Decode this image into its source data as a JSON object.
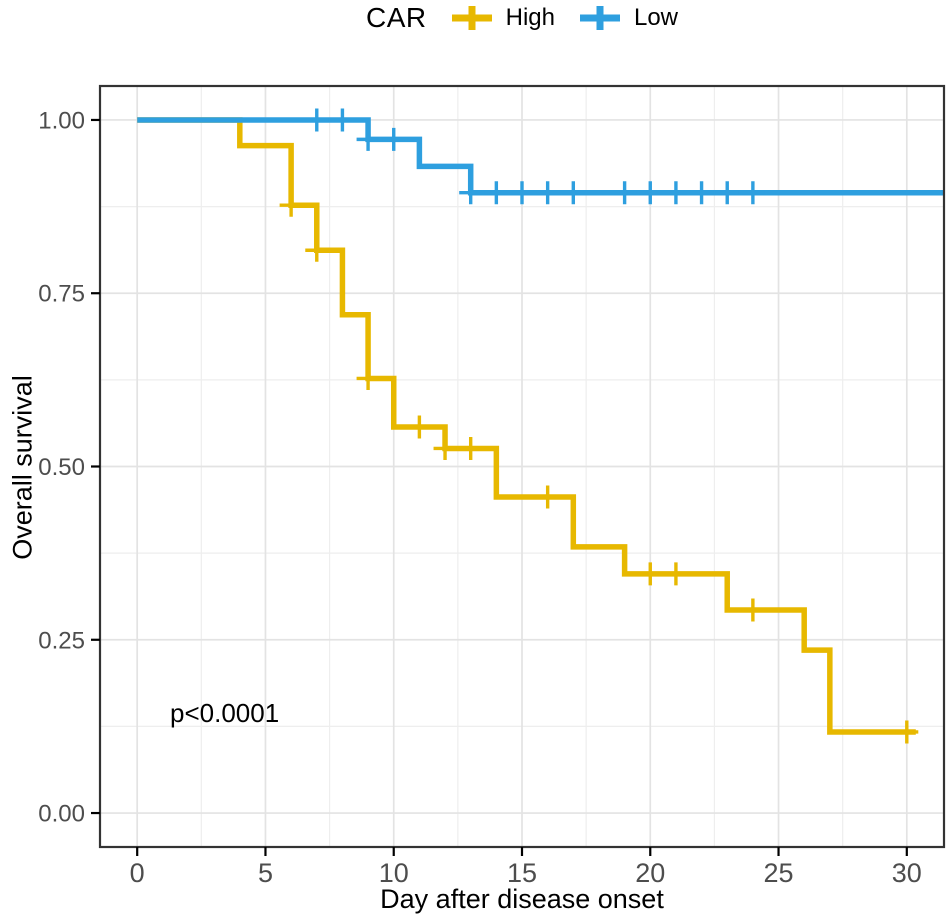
{
  "figure": {
    "kind": "kaplan-meier-survival-plot"
  },
  "legend": {
    "title": "CAR"
  },
  "chart_data": {
    "type": "line",
    "subtype": "kaplan-meier-step",
    "legend_title": "CAR",
    "xlabel": "Day after disease onset",
    "ylabel": "Overall survival",
    "p_value": "p<0.0001",
    "x_ticks": [
      0,
      5,
      10,
      15,
      20,
      25,
      30
    ],
    "x_minor_ticks": [
      2.5,
      7.5,
      12.5,
      17.5,
      22.5,
      27.5
    ],
    "y_ticks": [
      0,
      0.25,
      0.5,
      0.75,
      1.0
    ],
    "y_tick_labels": [
      "0.00",
      "0.25",
      "0.50",
      "0.75",
      "1.00"
    ],
    "y_minor_ticks": [
      0.125,
      0.375,
      0.625,
      0.875
    ],
    "x_range": [
      -1.45,
      31.45
    ],
    "y_range": [
      -0.049,
      1.049
    ],
    "grid": true,
    "legend_position": "top",
    "colors": {
      "grid_major": "#e3e3e3",
      "grid_minor": "#eeeeee",
      "panel_border": "#333333",
      "tick_label": "#4d4d4d",
      "axis_title": "#000000"
    },
    "series": [
      {
        "name": "High",
        "color": "#E7B800",
        "end_day": 30.35,
        "steps": [
          [
            0,
            1.0
          ],
          [
            4,
            0.963
          ],
          [
            6,
            0.877
          ],
          [
            7,
            0.812
          ],
          [
            8,
            0.719
          ],
          [
            9,
            0.627
          ],
          [
            10,
            0.557
          ],
          [
            12,
            0.526
          ],
          [
            14,
            0.456
          ],
          [
            17,
            0.384
          ],
          [
            19,
            0.345
          ],
          [
            23,
            0.293
          ],
          [
            26,
            0.235
          ],
          [
            27,
            0.117
          ]
        ],
        "censors": [
          [
            6,
            0.877
          ],
          [
            7,
            0.812
          ],
          [
            9,
            0.627
          ],
          [
            11,
            0.557
          ],
          [
            12,
            0.526
          ],
          [
            13,
            0.526
          ],
          [
            16,
            0.456
          ],
          [
            20,
            0.345
          ],
          [
            21,
            0.345
          ],
          [
            24,
            0.293
          ],
          [
            30,
            0.117
          ]
        ]
      },
      {
        "name": "Low",
        "color": "#2E9FDF",
        "end_day": 31.45,
        "steps": [
          [
            0,
            1.0
          ],
          [
            9,
            0.972
          ],
          [
            11,
            0.933
          ],
          [
            13,
            0.895
          ]
        ],
        "censors": [
          [
            7,
            1.0
          ],
          [
            8,
            1.0
          ],
          [
            9,
            0.972
          ],
          [
            10,
            0.972
          ],
          [
            13,
            0.895
          ],
          [
            14,
            0.895
          ],
          [
            15,
            0.895
          ],
          [
            16,
            0.895
          ],
          [
            17,
            0.895
          ],
          [
            19,
            0.895
          ],
          [
            20,
            0.895
          ],
          [
            21,
            0.895
          ],
          [
            22,
            0.895
          ],
          [
            23,
            0.895
          ],
          [
            24,
            0.895
          ]
        ]
      }
    ]
  }
}
